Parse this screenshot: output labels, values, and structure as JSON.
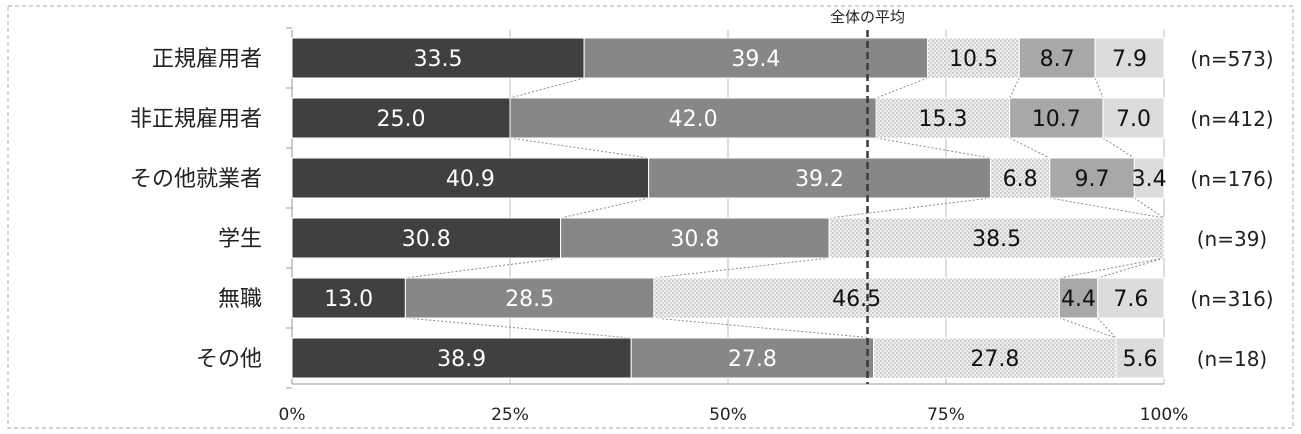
{
  "chart_data": {
    "type": "bar",
    "orientation": "horizontal",
    "stacked": "percent",
    "categories": [
      "正規雇用者",
      "非正規雇用者",
      "その他就業者",
      "学生",
      "無職",
      "その他"
    ],
    "n_labels": [
      "(n=573)",
      "(n=412)",
      "(n=176)",
      "(n=39)",
      "(n=316)",
      "(n=18)"
    ],
    "series": [
      {
        "values": [
          33.5,
          25.0,
          40.9,
          30.8,
          13.0,
          38.9
        ],
        "labels": [
          "33.5",
          "25.0",
          "40.9",
          "30.8",
          "13.0",
          "38.9"
        ],
        "color": "#404040"
      },
      {
        "values": [
          39.4,
          42.0,
          39.2,
          30.8,
          28.5,
          27.8
        ],
        "labels": [
          "39.4",
          "42.0",
          "39.2",
          "30.8",
          "28.5",
          "27.8"
        ],
        "color": "#878787"
      },
      {
        "values": [
          10.5,
          15.3,
          6.8,
          38.5,
          46.5,
          27.8
        ],
        "labels": [
          "10.5",
          "15.3",
          "6.8",
          "38.5",
          "46.5",
          "27.8"
        ],
        "color": "#e6e6e6",
        "pattern": "dotted"
      },
      {
        "values": [
          8.7,
          10.7,
          9.7,
          0,
          4.4,
          0
        ],
        "labels": [
          "8.7",
          "10.7",
          "9.7",
          "",
          "4.4",
          ""
        ],
        "color": "#a8a8a8"
      },
      {
        "values": [
          7.9,
          7.0,
          3.4,
          0,
          7.6,
          5.6
        ],
        "labels": [
          "7.9",
          "7.0",
          "3.4",
          "",
          "7.6",
          "5.6"
        ],
        "color": "#dcdcdc"
      }
    ],
    "x_ticks": [
      "0%",
      "25%",
      "50%",
      "75%",
      "100%"
    ],
    "xlim": [
      0,
      100
    ],
    "average_line": {
      "value": 66,
      "label": "全体の平均"
    },
    "grid": true
  }
}
